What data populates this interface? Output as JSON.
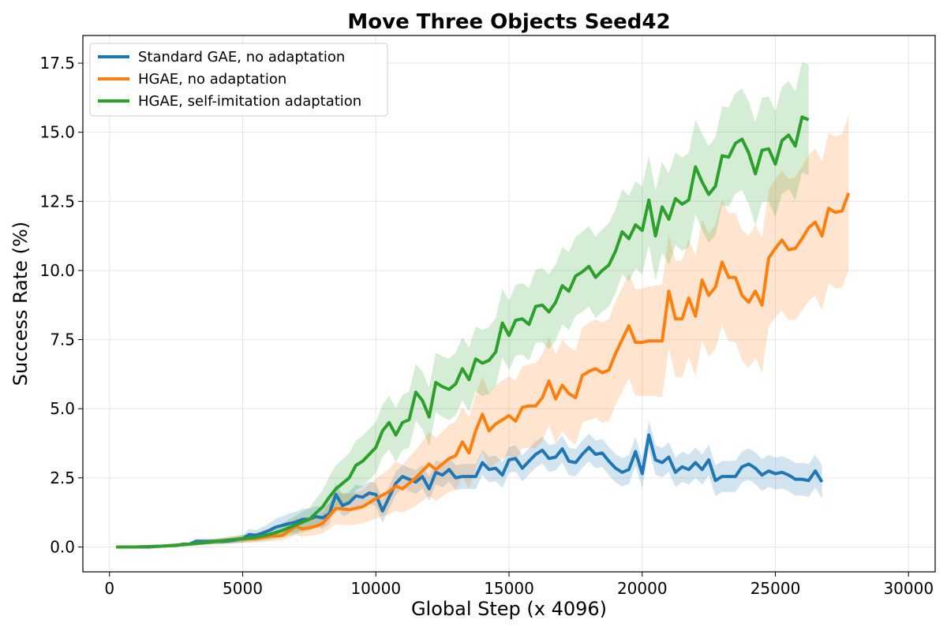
{
  "chart_data": {
    "type": "line",
    "title": "Move Three Objects Seed42",
    "xlabel": "Global Step (x 4096)",
    "ylabel": "Success Rate (%)",
    "xlim": [
      -1000,
      31000
    ],
    "ylim": [
      -0.9,
      18.5
    ],
    "xticks": [
      0,
      5000,
      10000,
      15000,
      20000,
      25000,
      30000
    ],
    "yticks": [
      0.0,
      2.5,
      5.0,
      7.5,
      10.0,
      12.5,
      15.0,
      17.5
    ],
    "grid": true,
    "legend_position": "top-left",
    "series": [
      {
        "name": "Standard GAE, no adaptation",
        "color": "#1f77b4",
        "points": [
          [
            250,
            0
          ],
          [
            500,
            0
          ],
          [
            750,
            0
          ],
          [
            1000,
            0
          ],
          [
            1250,
            0
          ],
          [
            1500,
            0
          ],
          [
            1750,
            0.02
          ],
          [
            2000,
            0.03
          ],
          [
            2250,
            0.05
          ],
          [
            2500,
            0.05
          ],
          [
            2750,
            0.1
          ],
          [
            3000,
            0.1
          ],
          [
            3250,
            0.2
          ],
          [
            3500,
            0.2
          ],
          [
            3750,
            0.2
          ],
          [
            4000,
            0.2
          ],
          [
            4250,
            0.2
          ],
          [
            4500,
            0.22
          ],
          [
            4750,
            0.25
          ],
          [
            5000,
            0.3
          ],
          [
            5250,
            0.45
          ],
          [
            5500,
            0.42
          ],
          [
            5750,
            0.5
          ],
          [
            6000,
            0.6
          ],
          [
            6250,
            0.72
          ],
          [
            6500,
            0.78
          ],
          [
            6750,
            0.85
          ],
          [
            7000,
            0.9
          ],
          [
            7250,
            1.0
          ],
          [
            7500,
            1.0
          ],
          [
            7750,
            1.1
          ],
          [
            8000,
            1.05
          ],
          [
            8250,
            1.2
          ],
          [
            8500,
            1.9
          ],
          [
            8750,
            1.5
          ],
          [
            9000,
            1.6
          ],
          [
            9250,
            1.85
          ],
          [
            9500,
            1.8
          ],
          [
            9750,
            1.95
          ],
          [
            10000,
            1.9
          ],
          [
            10250,
            1.3
          ],
          [
            10500,
            1.8
          ],
          [
            10750,
            2.3
          ],
          [
            11000,
            2.55
          ],
          [
            11250,
            2.45
          ],
          [
            11500,
            2.35
          ],
          [
            11750,
            2.55
          ],
          [
            12000,
            2.1
          ],
          [
            12250,
            2.7
          ],
          [
            12500,
            2.6
          ],
          [
            12750,
            2.8
          ],
          [
            13000,
            2.5
          ],
          [
            13250,
            2.55
          ],
          [
            13500,
            2.55
          ],
          [
            13750,
            2.55
          ],
          [
            14000,
            3.05
          ],
          [
            14250,
            2.8
          ],
          [
            14500,
            2.85
          ],
          [
            14750,
            2.6
          ],
          [
            15000,
            3.15
          ],
          [
            15250,
            3.2
          ],
          [
            15500,
            2.85
          ],
          [
            15750,
            3.1
          ],
          [
            16000,
            3.35
          ],
          [
            16250,
            3.5
          ],
          [
            16500,
            3.2
          ],
          [
            16750,
            3.25
          ],
          [
            17000,
            3.55
          ],
          [
            17250,
            3.1
          ],
          [
            17500,
            3.05
          ],
          [
            17750,
            3.35
          ],
          [
            18000,
            3.6
          ],
          [
            18250,
            3.35
          ],
          [
            18500,
            3.4
          ],
          [
            18750,
            3.1
          ],
          [
            19000,
            2.85
          ],
          [
            19250,
            2.7
          ],
          [
            19500,
            2.8
          ],
          [
            19750,
            3.45
          ],
          [
            20000,
            2.65
          ],
          [
            20250,
            4.05
          ],
          [
            20500,
            3.15
          ],
          [
            20750,
            3.05
          ],
          [
            21000,
            3.25
          ],
          [
            21250,
            2.7
          ],
          [
            21500,
            2.9
          ],
          [
            21750,
            2.8
          ],
          [
            22000,
            3.05
          ],
          [
            22250,
            2.8
          ],
          [
            22500,
            3.15
          ],
          [
            22750,
            2.4
          ],
          [
            23000,
            2.55
          ],
          [
            23250,
            2.55
          ],
          [
            23500,
            2.55
          ],
          [
            23750,
            2.9
          ],
          [
            24000,
            3.0
          ],
          [
            24250,
            2.85
          ],
          [
            24500,
            2.6
          ],
          [
            24750,
            2.75
          ],
          [
            25000,
            2.65
          ],
          [
            25250,
            2.7
          ],
          [
            25500,
            2.6
          ],
          [
            25750,
            2.45
          ],
          [
            26000,
            2.45
          ],
          [
            26250,
            2.4
          ],
          [
            26500,
            2.75
          ],
          [
            26750,
            2.35
          ]
        ],
        "band": [
          0.3,
          0.6
        ]
      },
      {
        "name": "HGAE, no adaptation",
        "color": "#ff7f0e",
        "points": [
          [
            250,
            0
          ],
          [
            1000,
            0
          ],
          [
            2000,
            0.03
          ],
          [
            2750,
            0.08
          ],
          [
            3000,
            0.1
          ],
          [
            3500,
            0.15
          ],
          [
            4000,
            0.2
          ],
          [
            4500,
            0.25
          ],
          [
            5000,
            0.28
          ],
          [
            5500,
            0.3
          ],
          [
            6000,
            0.38
          ],
          [
            6500,
            0.42
          ],
          [
            7000,
            0.75
          ],
          [
            7250,
            0.65
          ],
          [
            7750,
            0.75
          ],
          [
            8000,
            0.85
          ],
          [
            8500,
            1.4
          ],
          [
            9000,
            1.35
          ],
          [
            9500,
            1.45
          ],
          [
            10000,
            1.75
          ],
          [
            10500,
            2.0
          ],
          [
            10750,
            2.2
          ],
          [
            11000,
            2.1
          ],
          [
            11500,
            2.5
          ],
          [
            12000,
            3.0
          ],
          [
            12250,
            2.8
          ],
          [
            12750,
            3.2
          ],
          [
            13000,
            3.3
          ],
          [
            13250,
            3.8
          ],
          [
            13500,
            3.4
          ],
          [
            13750,
            4.2
          ],
          [
            14000,
            4.8
          ],
          [
            14250,
            4.2
          ],
          [
            14500,
            4.45
          ],
          [
            15000,
            4.75
          ],
          [
            15250,
            4.55
          ],
          [
            15500,
            5.05
          ],
          [
            15750,
            5.1
          ],
          [
            16000,
            5.1
          ],
          [
            16250,
            5.4
          ],
          [
            16500,
            6.0
          ],
          [
            16750,
            5.35
          ],
          [
            17000,
            5.85
          ],
          [
            17250,
            5.55
          ],
          [
            17500,
            5.4
          ],
          [
            17750,
            6.2
          ],
          [
            18000,
            6.35
          ],
          [
            18250,
            6.45
          ],
          [
            18500,
            6.3
          ],
          [
            18750,
            6.4
          ],
          [
            19000,
            7.0
          ],
          [
            19500,
            8.0
          ],
          [
            19750,
            7.4
          ],
          [
            20000,
            7.4
          ],
          [
            20250,
            7.45
          ],
          [
            20500,
            7.45
          ],
          [
            20750,
            7.45
          ],
          [
            21000,
            9.25
          ],
          [
            21250,
            8.25
          ],
          [
            21500,
            8.25
          ],
          [
            21750,
            9.0
          ],
          [
            22000,
            8.35
          ],
          [
            22250,
            9.65
          ],
          [
            22500,
            9.1
          ],
          [
            22750,
            9.4
          ],
          [
            23000,
            10.3
          ],
          [
            23250,
            9.75
          ],
          [
            23500,
            9.75
          ],
          [
            23750,
            9.1
          ],
          [
            24000,
            8.85
          ],
          [
            24250,
            9.25
          ],
          [
            24500,
            8.75
          ],
          [
            24750,
            10.45
          ],
          [
            25000,
            10.8
          ],
          [
            25250,
            11.1
          ],
          [
            25500,
            10.75
          ],
          [
            25750,
            10.8
          ],
          [
            26000,
            11.15
          ],
          [
            26250,
            11.55
          ],
          [
            26500,
            11.75
          ],
          [
            26750,
            11.25
          ],
          [
            27000,
            12.25
          ],
          [
            27250,
            12.1
          ],
          [
            27500,
            12.15
          ],
          [
            27750,
            12.8
          ]
        ],
        "band": [
          0.5,
          2.8
        ]
      },
      {
        "name": "HGAE, self-imitation adaptation",
        "color": "#2ca02c",
        "points": [
          [
            250,
            0
          ],
          [
            1000,
            0
          ],
          [
            2000,
            0.03
          ],
          [
            2750,
            0.08
          ],
          [
            3000,
            0.1
          ],
          [
            3500,
            0.15
          ],
          [
            4000,
            0.2
          ],
          [
            4500,
            0.25
          ],
          [
            5000,
            0.3
          ],
          [
            5500,
            0.35
          ],
          [
            6000,
            0.45
          ],
          [
            6500,
            0.6
          ],
          [
            7000,
            0.8
          ],
          [
            7500,
            1.0
          ],
          [
            8000,
            1.45
          ],
          [
            8250,
            1.8
          ],
          [
            8500,
            2.1
          ],
          [
            9000,
            2.5
          ],
          [
            9250,
            2.95
          ],
          [
            9500,
            3.1
          ],
          [
            10000,
            3.6
          ],
          [
            10250,
            4.2
          ],
          [
            10500,
            4.5
          ],
          [
            10750,
            4.05
          ],
          [
            11000,
            4.5
          ],
          [
            11250,
            4.6
          ],
          [
            11500,
            5.6
          ],
          [
            11750,
            5.3
          ],
          [
            12000,
            4.7
          ],
          [
            12250,
            5.95
          ],
          [
            12500,
            5.8
          ],
          [
            12750,
            5.7
          ],
          [
            13000,
            5.9
          ],
          [
            13250,
            6.45
          ],
          [
            13500,
            6.05
          ],
          [
            13750,
            6.8
          ],
          [
            14000,
            6.65
          ],
          [
            14250,
            6.75
          ],
          [
            14500,
            7.05
          ],
          [
            14750,
            8.1
          ],
          [
            15000,
            7.65
          ],
          [
            15250,
            8.2
          ],
          [
            15500,
            8.25
          ],
          [
            15750,
            8.05
          ],
          [
            16000,
            8.7
          ],
          [
            16250,
            8.75
          ],
          [
            16500,
            8.5
          ],
          [
            16750,
            8.85
          ],
          [
            17000,
            9.45
          ],
          [
            17250,
            9.25
          ],
          [
            17500,
            9.8
          ],
          [
            17750,
            9.95
          ],
          [
            18000,
            10.15
          ],
          [
            18250,
            9.75
          ],
          [
            18500,
            10.0
          ],
          [
            18750,
            10.2
          ],
          [
            19000,
            10.7
          ],
          [
            19250,
            11.4
          ],
          [
            19500,
            11.15
          ],
          [
            19750,
            11.65
          ],
          [
            20000,
            11.45
          ],
          [
            20250,
            12.55
          ],
          [
            20500,
            11.25
          ],
          [
            20750,
            12.3
          ],
          [
            21000,
            11.85
          ],
          [
            21250,
            12.6
          ],
          [
            21500,
            12.4
          ],
          [
            21750,
            12.55
          ],
          [
            22000,
            13.75
          ],
          [
            22250,
            13.2
          ],
          [
            22500,
            12.75
          ],
          [
            22750,
            13.05
          ],
          [
            23000,
            14.15
          ],
          [
            23250,
            14.1
          ],
          [
            23500,
            14.6
          ],
          [
            23750,
            14.75
          ],
          [
            24000,
            14.25
          ],
          [
            24250,
            13.5
          ],
          [
            24500,
            14.35
          ],
          [
            24750,
            14.4
          ],
          [
            25000,
            13.85
          ],
          [
            25250,
            14.7
          ],
          [
            25500,
            14.9
          ],
          [
            25750,
            14.5
          ],
          [
            26000,
            15.55
          ],
          [
            26250,
            15.45
          ]
        ],
        "band": [
          0.6,
          2.0
        ]
      }
    ]
  }
}
